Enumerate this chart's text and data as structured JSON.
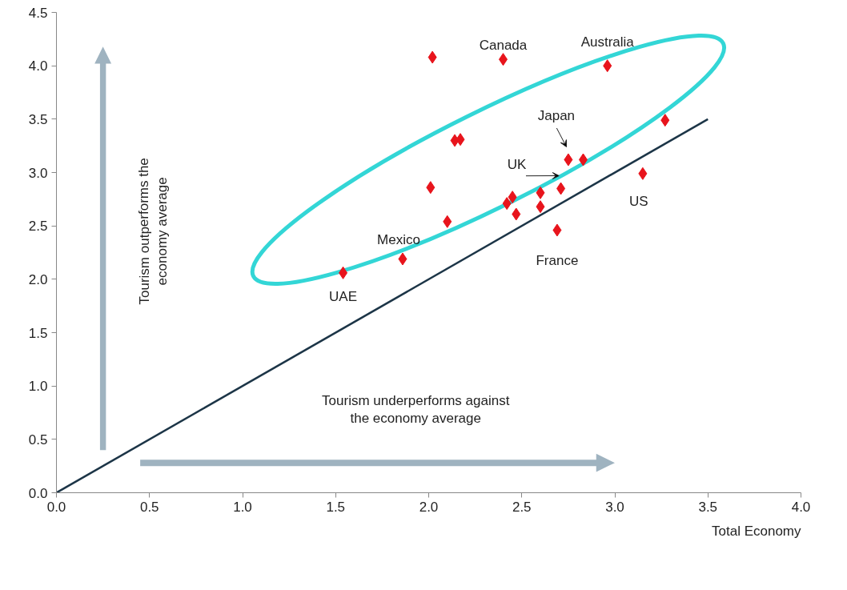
{
  "chart_data": {
    "type": "scatter",
    "xlabel": "Total Economy",
    "marker": "diamond",
    "grid": false,
    "xlim": [
      0,
      4
    ],
    "ylim": [
      0,
      4.5
    ],
    "xticks": [
      {
        "value": 0,
        "label": "0.0"
      },
      0.5,
      {
        "value": 1,
        "label": "1.0"
      },
      1.5,
      {
        "value": 2,
        "label": "2.0"
      },
      2.5,
      {
        "value": 3,
        "label": "3.0"
      },
      3.5,
      {
        "value": 4,
        "label": "4.0"
      }
    ],
    "yticks": [
      {
        "value": 0,
        "label": "0.0"
      },
      0.5,
      {
        "value": 1,
        "label": "1.0"
      },
      1.5,
      {
        "value": 2,
        "label": "2.0"
      },
      2.5,
      {
        "value": 3,
        "label": "3.0"
      },
      3.5,
      {
        "value": 4,
        "label": "4.0"
      },
      4.5
    ],
    "series": [
      {
        "color": "#e8141c",
        "x": [
          1.54,
          1.86,
          2.1,
          2.01,
          2.02,
          2.4,
          2.96,
          3.27,
          2.14,
          2.17,
          2.75,
          2.83,
          2.71,
          2.6,
          2.6,
          2.45,
          2.42,
          2.47,
          2.69,
          3.15
        ],
        "values": [
          2.06,
          2.19,
          2.54,
          2.86,
          4.08,
          4.06,
          4.0,
          3.49,
          3.3,
          3.31,
          3.12,
          3.12,
          2.85,
          2.81,
          2.68,
          2.77,
          2.71,
          2.61,
          2.46,
          2.99
        ]
      },
      {
        "type": "line",
        "marker": "none",
        "color": "#1c3547",
        "x": [
          0,
          3.5
        ],
        "values": [
          0,
          3.5
        ]
      }
    ],
    "annotations": [
      {
        "text": "UAE",
        "x": 1.54,
        "y": 2.06
      },
      {
        "text": "Mexico",
        "x": 1.86,
        "y": 2.19
      },
      {
        "text": "Canada",
        "x": 2.4,
        "y": 4.06
      },
      {
        "text": "Australia",
        "x": 2.96,
        "y": 4.0
      },
      {
        "text": "Japan",
        "x": 2.75,
        "y": 3.12
      },
      {
        "text": "UK",
        "x": 2.71,
        "y": 2.85
      },
      {
        "text": "France",
        "x": 2.69,
        "y": 2.46
      },
      {
        "text": "US",
        "x": 3.15,
        "y": 2.99
      },
      "Tourism outperforms the\neconomy average",
      "Tourism underperforms against\nthe economy average"
    ]
  }
}
